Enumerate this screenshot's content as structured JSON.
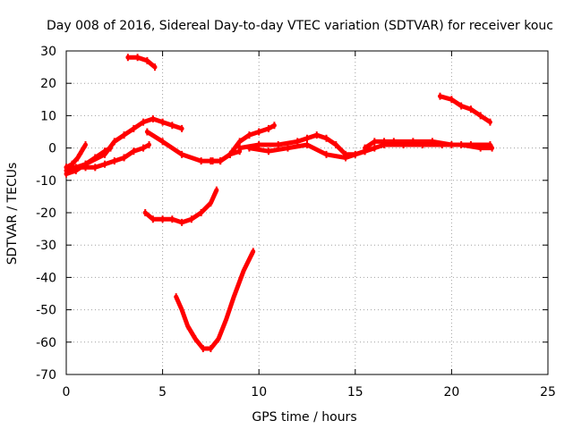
{
  "chart_data": {
    "type": "line",
    "title": "Day 008 of 2016, Sidereal Day-to-day VTEC variation (SDTVAR) for receiver kouc",
    "xlabel": "GPS time / hours",
    "ylabel": "SDTVAR / TECUs",
    "xlim": [
      0,
      25
    ],
    "ylim": [
      -70,
      30
    ],
    "xticks": [
      "0",
      "5",
      "10",
      "15",
      "20",
      "25"
    ],
    "yticks": [
      "30",
      "20",
      "10",
      "0",
      "-10",
      "-20",
      "-30",
      "-40",
      "-50",
      "-60",
      "-70"
    ],
    "grid": true,
    "color": "#ff0000",
    "series": [
      {
        "name": "arc-1",
        "points": [
          [
            0.0,
            -6
          ],
          [
            0.3,
            -5
          ],
          [
            0.6,
            -3
          ],
          [
            0.8,
            -1
          ],
          [
            1.0,
            1
          ]
        ]
      },
      {
        "name": "arc-2",
        "points": [
          [
            0.0,
            -8
          ],
          [
            0.5,
            -7
          ],
          [
            1.0,
            -5
          ],
          [
            1.5,
            -3
          ],
          [
            2.0,
            -1
          ],
          [
            2.3,
            0
          ]
        ]
      },
      {
        "name": "arc-3",
        "points": [
          [
            0.0,
            -6
          ],
          [
            0.5,
            -6
          ],
          [
            1.0,
            -6
          ],
          [
            1.5,
            -6
          ],
          [
            2.0,
            -5
          ],
          [
            2.5,
            -4
          ],
          [
            3.0,
            -3
          ],
          [
            3.5,
            -1
          ],
          [
            4.0,
            0
          ],
          [
            4.3,
            1
          ]
        ]
      },
      {
        "name": "arc-4",
        "points": [
          [
            0.0,
            -7
          ],
          [
            1.0,
            -5
          ],
          [
            2.0,
            -2
          ],
          [
            2.5,
            2
          ],
          [
            3.0,
            4
          ],
          [
            3.5,
            6
          ],
          [
            4.0,
            8
          ],
          [
            4.5,
            9
          ],
          [
            5.0,
            8
          ],
          [
            5.5,
            7
          ],
          [
            6.0,
            6
          ]
        ]
      },
      {
        "name": "arc-5",
        "points": [
          [
            4.2,
            5
          ],
          [
            5.0,
            2
          ],
          [
            6.0,
            -2
          ],
          [
            7.0,
            -4
          ],
          [
            7.5,
            -4
          ],
          [
            8.0,
            -4
          ],
          [
            8.5,
            -2
          ],
          [
            9.0,
            -1
          ]
        ]
      },
      {
        "name": "arc-6",
        "points": [
          [
            4.1,
            -20
          ],
          [
            4.5,
            -22
          ],
          [
            5.0,
            -22
          ],
          [
            5.5,
            -22
          ],
          [
            6.0,
            -23
          ],
          [
            6.5,
            -22
          ],
          [
            7.0,
            -20
          ],
          [
            7.5,
            -17
          ],
          [
            7.8,
            -13
          ]
        ]
      },
      {
        "name": "arc-7",
        "points": [
          [
            3.2,
            28
          ],
          [
            3.7,
            28
          ],
          [
            4.2,
            27
          ],
          [
            4.6,
            25
          ]
        ]
      },
      {
        "name": "arc-8",
        "points": [
          [
            5.7,
            -46
          ],
          [
            6.0,
            -50
          ],
          [
            6.3,
            -55
          ],
          [
            6.7,
            -59
          ],
          [
            7.1,
            -62
          ],
          [
            7.5,
            -62
          ],
          [
            7.9,
            -59
          ],
          [
            8.3,
            -53
          ],
          [
            8.7,
            -46
          ],
          [
            9.2,
            -38
          ],
          [
            9.7,
            -32
          ]
        ]
      },
      {
        "name": "arc-9",
        "points": [
          [
            7.6,
            -4
          ],
          [
            8.0,
            -4
          ],
          [
            8.5,
            -2
          ],
          [
            9.0,
            2
          ],
          [
            9.5,
            4
          ],
          [
            10.0,
            5
          ],
          [
            10.5,
            6
          ],
          [
            10.8,
            7
          ]
        ]
      },
      {
        "name": "arc-10",
        "points": [
          [
            9.0,
            0
          ],
          [
            10.0,
            1
          ],
          [
            11.0,
            1
          ],
          [
            12.0,
            2
          ],
          [
            12.5,
            3
          ],
          [
            13.0,
            4
          ],
          [
            13.5,
            3
          ],
          [
            14.0,
            1
          ],
          [
            14.5,
            -2
          ],
          [
            15.0,
            -2
          ],
          [
            15.5,
            -1
          ],
          [
            16.0,
            0
          ]
        ]
      },
      {
        "name": "arc-11",
        "points": [
          [
            9.5,
            0
          ],
          [
            10.5,
            -1
          ],
          [
            11.5,
            0
          ],
          [
            12.5,
            1
          ],
          [
            13.5,
            -2
          ],
          [
            14.5,
            -3
          ],
          [
            15.5,
            -1
          ],
          [
            16.5,
            1
          ],
          [
            17.5,
            1
          ],
          [
            18.5,
            1
          ],
          [
            19.5,
            1
          ],
          [
            20.5,
            1
          ],
          [
            21.5,
            0
          ],
          [
            22.1,
            0
          ]
        ]
      },
      {
        "name": "arc-12",
        "points": [
          [
            15.5,
            0
          ],
          [
            16.0,
            2
          ],
          [
            16.5,
            2
          ],
          [
            17.0,
            2
          ],
          [
            18.0,
            2
          ],
          [
            19.0,
            2
          ],
          [
            20.0,
            1
          ],
          [
            21.0,
            1
          ],
          [
            22.0,
            1
          ]
        ]
      },
      {
        "name": "arc-13",
        "points": [
          [
            19.4,
            16
          ],
          [
            20.0,
            15
          ],
          [
            20.5,
            13
          ],
          [
            21.0,
            12
          ],
          [
            21.5,
            10
          ],
          [
            22.0,
            8
          ]
        ]
      }
    ]
  }
}
